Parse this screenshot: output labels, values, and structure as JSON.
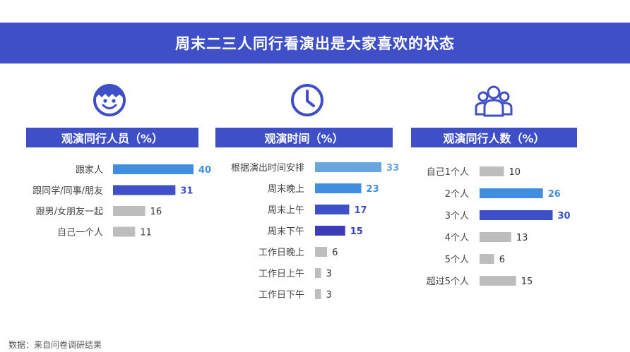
{
  "title": "周末二三人同行看演出是大家喜欢的状态",
  "footnote": "数据：来自问卷调研结果",
  "colors": {
    "banner": "#3f4fc8",
    "gray": "#bdbdbd",
    "light_blue": "#6aa6de",
    "mid_blue": "#3f8ee0",
    "indigo": "#3f4fc8",
    "deep_indigo": "#3a3cb8"
  },
  "icons": [
    "smiley-face-icon",
    "clock-icon",
    "group-of-people-icon"
  ],
  "chart_data": [
    {
      "type": "bar",
      "orientation": "horizontal",
      "title": "观演同行人员（%）",
      "categories": [
        "跟家人",
        "跟同学/同事/朋友",
        "跟男/女朋友一起",
        "自己一个人"
      ],
      "values": [
        40,
        31,
        16,
        11
      ],
      "bar_colors": [
        "#3f8ee0",
        "#3f4fc8",
        "#bdbdbd",
        "#bdbdbd"
      ],
      "label_colors": [
        "#3f8ee0",
        "#3f4fc8",
        "#333333",
        "#333333"
      ],
      "label_bold": [
        true,
        true,
        false,
        false
      ]
    },
    {
      "type": "bar",
      "orientation": "horizontal",
      "title": "观演时间（%）",
      "categories": [
        "根据演出时间安排",
        "周末晚上",
        "周末上午",
        "周末下午",
        "工作日晚上",
        "工作日上午",
        "工作日下午"
      ],
      "values": [
        33,
        23,
        17,
        15,
        6,
        3,
        3
      ],
      "bar_colors": [
        "#6aa6de",
        "#3f8ee0",
        "#3f4fc8",
        "#3a3cb8",
        "#bdbdbd",
        "#bdbdbd",
        "#bdbdbd"
      ],
      "label_colors": [
        "#6aa6de",
        "#3f8ee0",
        "#3f4fc8",
        "#3a3cb8",
        "#333333",
        "#333333",
        "#333333"
      ],
      "label_bold": [
        true,
        true,
        true,
        true,
        false,
        false,
        false
      ]
    },
    {
      "type": "bar",
      "orientation": "horizontal",
      "title": "观演同行人数（%）",
      "categories": [
        "自己1个人",
        "2个人",
        "3个人",
        "4个人",
        "5个人",
        "超过5个人"
      ],
      "values": [
        10,
        26,
        30,
        13,
        6,
        15
      ],
      "bar_colors": [
        "#bdbdbd",
        "#3f8ee0",
        "#3f4fc8",
        "#bdbdbd",
        "#bdbdbd",
        "#bdbdbd"
      ],
      "label_colors": [
        "#333333",
        "#3f8ee0",
        "#3f4fc8",
        "#333333",
        "#333333",
        "#333333"
      ],
      "label_bold": [
        false,
        true,
        true,
        false,
        false,
        false
      ]
    }
  ]
}
